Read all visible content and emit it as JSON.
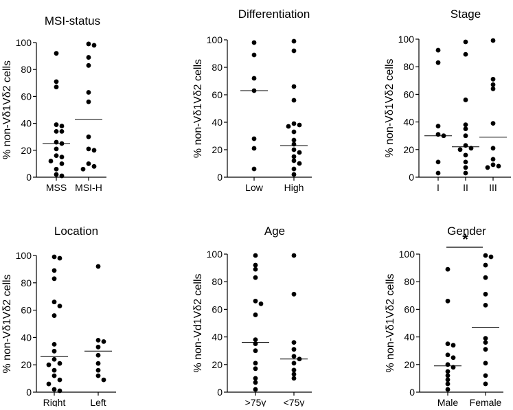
{
  "figure": {
    "marker_color": "#000000",
    "line_color": "#000000"
  },
  "chart_data": [
    {
      "type": "scatter",
      "title": "MSI-status",
      "ylabel": "% non-Vδ1Vδ2 cells",
      "ylim": [
        0,
        100
      ],
      "yticks": [
        "0",
        "20",
        "40",
        "60",
        "80",
        "100"
      ],
      "categories": [
        "MSS",
        "MSI-H"
      ],
      "groups": [
        {
          "name": "MSS",
          "points": [
            92,
            71,
            67,
            39,
            38,
            34,
            34,
            26,
            25,
            21,
            16,
            15,
            12,
            10,
            6,
            2,
            1
          ],
          "mean": 25
        },
        {
          "name": "MSI-H",
          "points": [
            99,
            98,
            89,
            83,
            63,
            56,
            30,
            21,
            20,
            10,
            8,
            6
          ],
          "mean": 43
        }
      ],
      "significance": null
    },
    {
      "type": "scatter",
      "title": "Differentiation",
      "ylabel": "% non-Vδ1Vδ2 cells",
      "ylim": [
        0,
        100
      ],
      "yticks": [
        "0",
        "20",
        "40",
        "60",
        "80",
        "100"
      ],
      "categories": [
        "Low",
        "High"
      ],
      "groups": [
        {
          "name": "Low",
          "points": [
            98,
            89,
            72,
            63,
            28,
            21,
            6
          ],
          "mean": 63
        },
        {
          "name": "High",
          "points": [
            99,
            92,
            66,
            56,
            39,
            38,
            37,
            33,
            27,
            24,
            20,
            18,
            15,
            12,
            10,
            6,
            2
          ],
          "mean": 23
        }
      ],
      "significance": null
    },
    {
      "type": "scatter",
      "title": "Stage",
      "ylabel": "% non-Vδ1Vδ2 cells",
      "ylim": [
        0,
        100
      ],
      "yticks": [
        "0",
        "20",
        "40",
        "60",
        "80",
        "100"
      ],
      "categories": [
        "I",
        "II",
        "III"
      ],
      "groups": [
        {
          "name": "I",
          "points": [
            92,
            83,
            37,
            31,
            30,
            11,
            3
          ],
          "mean": 30
        },
        {
          "name": "II",
          "points": [
            98,
            89,
            56,
            38,
            35,
            30,
            23,
            21,
            20,
            16,
            11,
            7,
            3
          ],
          "mean": 22
        },
        {
          "name": "III",
          "points": [
            99,
            71,
            67,
            64,
            39,
            21,
            13,
            9,
            8,
            7
          ],
          "mean": 29
        }
      ],
      "significance": null
    },
    {
      "type": "scatter",
      "title": "Location",
      "ylabel": "% non-Vδ1Vδ2 cells",
      "ylim": [
        0,
        100
      ],
      "yticks": [
        "0",
        "20",
        "40",
        "60",
        "80",
        "100"
      ],
      "categories": [
        "Right",
        "Left"
      ],
      "groups": [
        {
          "name": "Right",
          "points": [
            99,
            98,
            89,
            83,
            66,
            63,
            56,
            35,
            30,
            24,
            21,
            20,
            16,
            12,
            9,
            6,
            2,
            1
          ],
          "mean": 26
        },
        {
          "name": "Left",
          "points": [
            92,
            38,
            37,
            33,
            27,
            21,
            16,
            12,
            9
          ],
          "mean": 30
        }
      ],
      "significance": null
    },
    {
      "type": "scatter",
      "title": "Age",
      "ylabel": "% non-Vd1Vδ2 cells",
      "ylim": [
        0,
        100
      ],
      "yticks": [
        "0",
        "20",
        "40",
        "60",
        "80",
        "100"
      ],
      "categories": [
        ">75y",
        "<75y"
      ],
      "groups": [
        {
          "name": ">75y",
          "points": [
            99,
            92,
            89,
            83,
            66,
            64,
            56,
            38,
            35,
            30,
            21,
            17,
            10,
            7,
            2
          ],
          "mean": 36
        },
        {
          "name": "<75y",
          "points": [
            99,
            71,
            36,
            31,
            26,
            24,
            21,
            16,
            13,
            10
          ],
          "mean": 24
        }
      ],
      "significance": null
    },
    {
      "type": "scatter",
      "title": "Gender",
      "ylabel": "% non-Vδ1Vδ2 cells",
      "ylim": [
        0,
        100
      ],
      "yticks": [
        "0",
        "20",
        "40",
        "60",
        "80",
        "100"
      ],
      "categories": [
        "Male",
        "Female"
      ],
      "groups": [
        {
          "name": "Male",
          "points": [
            89,
            66,
            35,
            34,
            27,
            25,
            20,
            18,
            15,
            12,
            9,
            6,
            2
          ],
          "mean": 19
        },
        {
          "name": "Female",
          "points": [
            99,
            98,
            92,
            83,
            71,
            63,
            39,
            36,
            31,
            21,
            12,
            6
          ],
          "mean": 47
        }
      ],
      "significance": {
        "groups": [
          "Male",
          "Female"
        ],
        "label": "*"
      }
    }
  ]
}
